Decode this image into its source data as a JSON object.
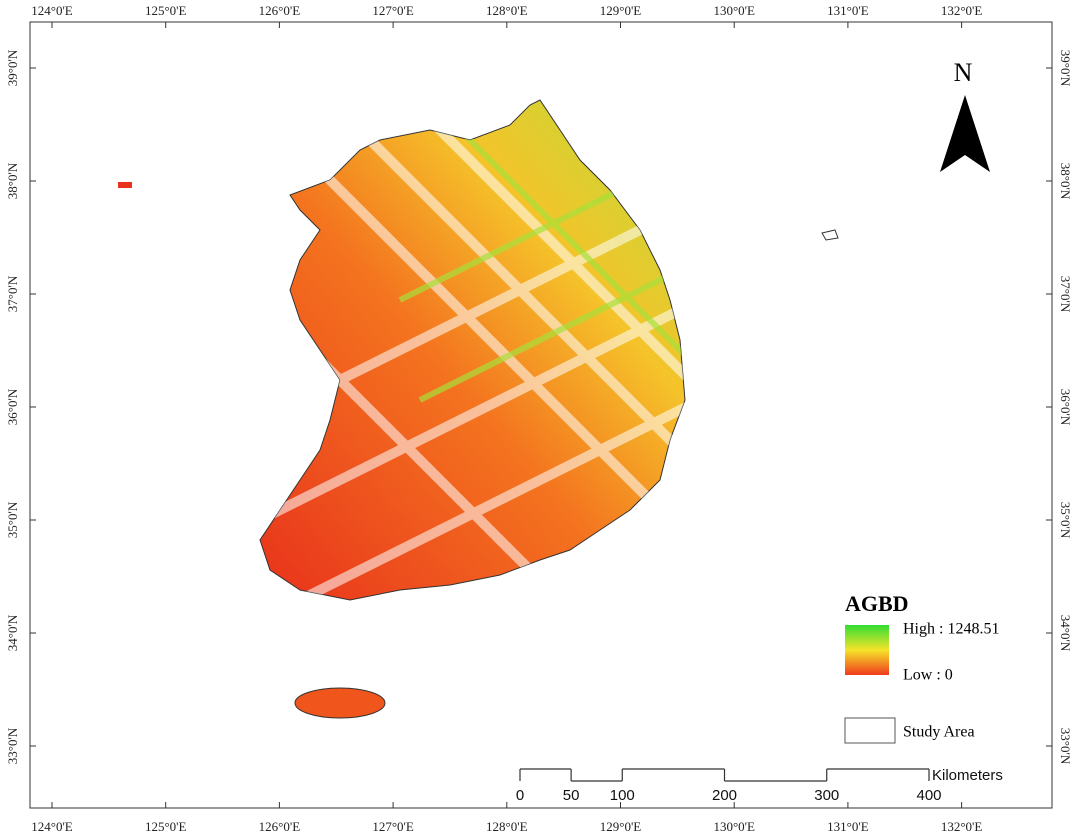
{
  "map": {
    "longitude_labels": [
      "124°0'E",
      "125°0'E",
      "126°0'E",
      "127°0'E",
      "128°0'E",
      "129°0'E",
      "130°0'E",
      "131°0'E",
      "132°0'E"
    ],
    "latitude_labels": [
      "39°0'N",
      "38°0'N",
      "37°0'N",
      "36°0'N",
      "35°0'N",
      "34°0'N",
      "33°0'N"
    ],
    "north_label": "N",
    "legend": {
      "title": "AGBD",
      "high": "High : 1248.51",
      "low": "Low : 0",
      "study_area": "Study Area"
    },
    "scale_bar": {
      "ticks": [
        0,
        50,
        100,
        200,
        300,
        400
      ],
      "unit": "Kilometers"
    }
  }
}
